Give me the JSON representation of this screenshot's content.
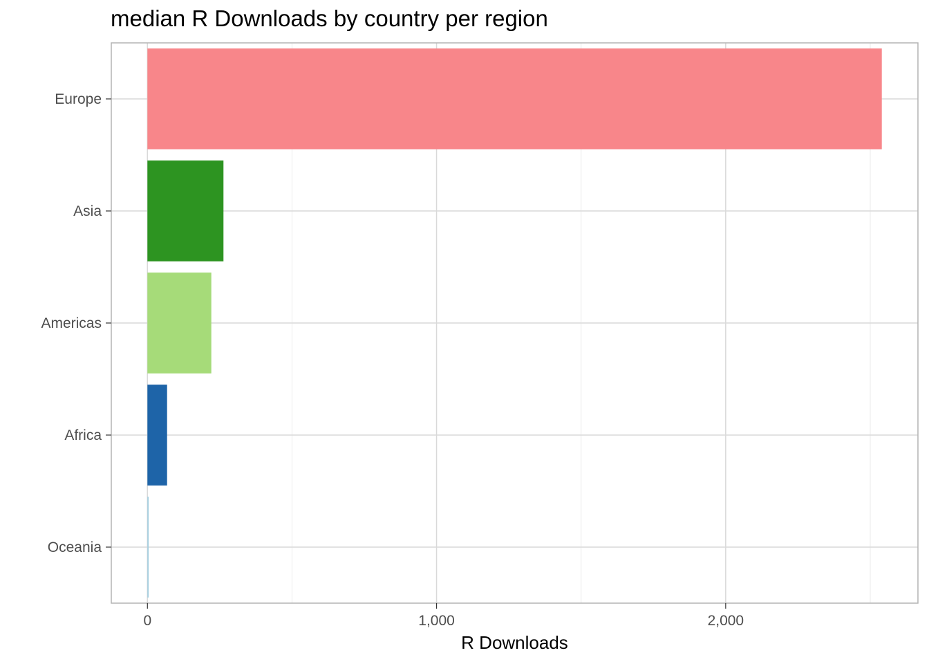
{
  "chart_data": {
    "type": "bar",
    "orientation": "horizontal",
    "title": "median R Downloads by country per region",
    "xlabel": "R Downloads",
    "ylabel": "",
    "categories": [
      "Europe",
      "Asia",
      "Americas",
      "Africa",
      "Oceania"
    ],
    "values": [
      2540,
      263,
      221,
      68,
      4
    ],
    "colors": [
      "#F8868A",
      "#2D9421",
      "#A6DB79",
      "#1E64A8",
      "#9FCDE0"
    ],
    "xlim": [
      -125,
      2665
    ],
    "xticks": [
      0,
      1000,
      2000
    ],
    "xtick_labels": [
      "0",
      "1,000",
      "2,000"
    ],
    "x_minor_gridlines": [
      500,
      1500,
      2500
    ],
    "grid": true,
    "legend": "none"
  }
}
